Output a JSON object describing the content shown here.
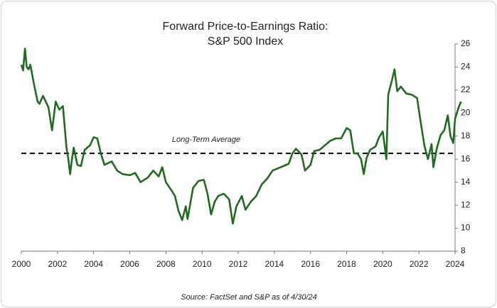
{
  "chart_data": {
    "type": "line",
    "title": "Forward Price-to-Earnings Ratio:",
    "subtitle": "S&P 500 Index",
    "source": "Source: FactSet and S&P as of 4/30/24",
    "average_line": {
      "value": 16.5,
      "label": "Long-Term Average"
    },
    "xlim": [
      2000,
      2024
    ],
    "xticks": [
      2000,
      2002,
      2004,
      2006,
      2008,
      2010,
      2012,
      2014,
      2016,
      2018,
      2020,
      2022,
      2024
    ],
    "ylim": [
      8,
      26
    ],
    "yticks": [
      8,
      10,
      12,
      14,
      16,
      18,
      20,
      22,
      24,
      26
    ],
    "x": [
      2000.0,
      2000.1,
      2000.2,
      2000.3,
      2000.4,
      2000.5,
      2000.7,
      2000.9,
      2001.0,
      2001.2,
      2001.5,
      2001.7,
      2001.9,
      2002.1,
      2002.3,
      2002.5,
      2002.6,
      2002.7,
      2002.8,
      2002.9,
      2003.1,
      2003.3,
      2003.5,
      2003.8,
      2004.0,
      2004.2,
      2004.4,
      2004.6,
      2005.0,
      2005.3,
      2005.6,
      2006.0,
      2006.3,
      2006.6,
      2007.0,
      2007.3,
      2007.6,
      2007.8,
      2008.0,
      2008.3,
      2008.5,
      2008.7,
      2008.9,
      2009.1,
      2009.2,
      2009.5,
      2009.8,
      2010.1,
      2010.3,
      2010.5,
      2010.7,
      2010.9,
      2011.2,
      2011.5,
      2011.7,
      2011.9,
      2012.2,
      2012.4,
      2012.7,
      2013.0,
      2013.3,
      2013.6,
      2013.9,
      2014.2,
      2014.5,
      2014.8,
      2015.0,
      2015.2,
      2015.5,
      2015.7,
      2016.0,
      2016.2,
      2016.5,
      2016.8,
      2017.1,
      2017.4,
      2017.7,
      2018.0,
      2018.2,
      2018.4,
      2018.6,
      2018.8,
      2018.95,
      2019.1,
      2019.3,
      2019.6,
      2019.8,
      2020.0,
      2020.1,
      2020.2,
      2020.3,
      2020.5,
      2020.65,
      2020.8,
      2021.0,
      2021.3,
      2021.6,
      2021.9,
      2022.1,
      2022.3,
      2022.5,
      2022.7,
      2022.8,
      2023.0,
      2023.2,
      2023.4,
      2023.6,
      2023.75,
      2023.9,
      2024.0,
      2024.2,
      2024.33
    ],
    "series": [
      {
        "name": "Forward P/E",
        "color": "#1f6b1f",
        "values": [
          24.2,
          23.7,
          25.6,
          24.0,
          23.8,
          24.2,
          22.5,
          21.0,
          20.8,
          21.5,
          20.5,
          18.5,
          21.0,
          20.3,
          20.6,
          17.0,
          16.0,
          14.7,
          16.0,
          17.0,
          15.5,
          15.4,
          16.8,
          17.2,
          17.9,
          17.8,
          16.5,
          15.5,
          15.8,
          15.0,
          14.7,
          14.6,
          14.8,
          14.0,
          14.4,
          15.0,
          14.5,
          15.3,
          14.0,
          13.3,
          12.8,
          11.5,
          10.7,
          11.9,
          10.8,
          13.5,
          14.1,
          14.2,
          13.0,
          11.2,
          12.3,
          12.8,
          13.0,
          12.5,
          10.4,
          11.9,
          12.8,
          11.6,
          12.3,
          12.8,
          13.8,
          14.3,
          15.0,
          15.2,
          15.4,
          15.6,
          16.5,
          16.9,
          16.4,
          15.0,
          15.5,
          16.7,
          16.8,
          17.2,
          17.6,
          17.8,
          17.8,
          18.7,
          18.5,
          16.5,
          16.5,
          16.0,
          14.7,
          16.1,
          16.8,
          17.1,
          17.9,
          18.4,
          17.2,
          16.0,
          21.6,
          22.8,
          23.8,
          21.9,
          22.3,
          21.7,
          21.6,
          21.3,
          19.2,
          17.2,
          16.0,
          17.3,
          15.3,
          17.0,
          18.1,
          18.5,
          19.8,
          18.0,
          17.4,
          19.5,
          20.5,
          21.0
        ]
      }
    ]
  }
}
